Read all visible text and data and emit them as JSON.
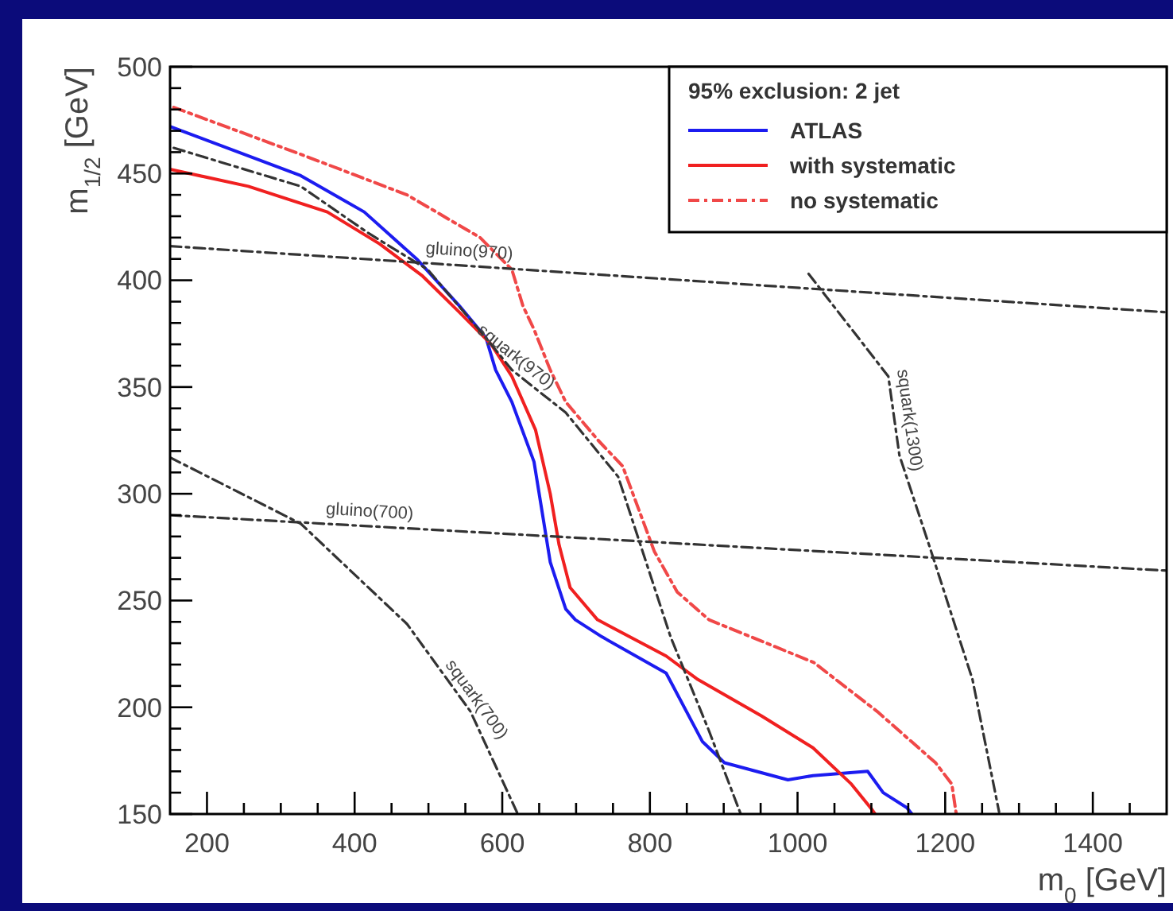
{
  "chart_data": {
    "type": "line",
    "xlabel": "m$_{0}$ [GeV]",
    "ylabel": "m$_{1/2}$ [GeV]",
    "legend_title": "95% exclusion: 2 jet",
    "legend": "top right",
    "grid": false,
    "xlim": [
      150,
      1500
    ],
    "ylim": [
      150,
      500
    ],
    "xticks": [
      200,
      {
        "value": 250,
        "label": null
      },
      {
        "value": 300,
        "label": null
      },
      {
        "value": 350,
        "label": null
      },
      400,
      {
        "value": 450,
        "label": null
      },
      {
        "value": 500,
        "label": null
      },
      {
        "value": 550,
        "label": null
      },
      600,
      {
        "value": 650,
        "label": null
      },
      {
        "value": 700,
        "label": null
      },
      {
        "value": 750,
        "label": null
      },
      800,
      {
        "value": 850,
        "label": null
      },
      {
        "value": 900,
        "label": null
      },
      {
        "value": 950,
        "label": null
      },
      1000,
      {
        "value": 1050,
        "label": null
      },
      {
        "value": 1100,
        "label": null
      },
      {
        "value": 1150,
        "label": null
      },
      1200,
      {
        "value": 1250,
        "label": null
      },
      {
        "value": 1300,
        "label": null
      },
      {
        "value": 1350,
        "label": null
      },
      1400,
      {
        "value": 1450,
        "label": null
      }
    ],
    "yticks": [
      150,
      {
        "value": 160,
        "label": null
      },
      {
        "value": 170,
        "label": null
      },
      {
        "value": 180,
        "label": null
      },
      {
        "value": 190,
        "label": null
      },
      200,
      {
        "value": 210,
        "label": null
      },
      {
        "value": 220,
        "label": null
      },
      {
        "value": 230,
        "label": null
      },
      {
        "value": 240,
        "label": null
      },
      250,
      {
        "value": 260,
        "label": null
      },
      {
        "value": 270,
        "label": null
      },
      {
        "value": 280,
        "label": null
      },
      {
        "value": 290,
        "label": null
      },
      300,
      {
        "value": 310,
        "label": null
      },
      {
        "value": 320,
        "label": null
      },
      {
        "value": 330,
        "label": null
      },
      {
        "value": 340,
        "label": null
      },
      350,
      {
        "value": 360,
        "label": null
      },
      {
        "value": 370,
        "label": null
      },
      {
        "value": 380,
        "label": null
      },
      {
        "value": 390,
        "label": null
      },
      400,
      {
        "value": 410,
        "label": null
      },
      {
        "value": 420,
        "label": null
      },
      {
        "value": 430,
        "label": null
      },
      {
        "value": 440,
        "label": null
      },
      450,
      {
        "value": 460,
        "label": null
      },
      {
        "value": 470,
        "label": null
      },
      {
        "value": 480,
        "label": null
      },
      {
        "value": 490,
        "label": null
      },
      500
    ],
    "series": [
      {
        "name": "ATLAS",
        "color": "#1c1cf0",
        "line_style": "solid",
        "x": [
          150,
          327,
          413,
          484,
          542,
          578,
          591,
          613,
          643,
          665,
          686,
          699,
          735,
          822,
          871,
          901,
          987,
          1021,
          1095,
          1116,
          1148,
          1155
        ],
        "values": [
          472,
          449,
          432,
          410,
          388,
          373,
          358,
          343,
          315,
          268,
          246,
          241,
          233,
          216,
          184,
          174,
          166,
          168,
          170,
          160,
          153,
          150
        ]
      },
      {
        "name": "with systematic",
        "color": "#f02020",
        "line_style": "solid",
        "x": [
          150,
          256,
          363,
          434,
          492,
          542,
          585,
          613,
          645,
          665,
          677,
          692,
          729,
          822,
          865,
          951,
          1021,
          1073,
          1101,
          1105
        ],
        "values": [
          452,
          444,
          432,
          417,
          402,
          385,
          370,
          355,
          330,
          300,
          276,
          256,
          241,
          224,
          213,
          196,
          181,
          164,
          152,
          150
        ]
      },
      {
        "name": "no systematic",
        "color": "#f04848",
        "line_style": "dashed",
        "x": [
          155,
          327,
          471,
          570,
          613,
          628,
          643,
          665,
          686,
          730,
          763,
          806,
          837,
          880,
          1022,
          1108,
          1187,
          1209,
          1215
        ],
        "values": [
          481,
          459,
          440,
          420,
          405,
          388,
          377,
          358,
          343,
          325,
          313,
          273,
          254,
          241,
          221,
          198,
          174,
          164,
          150
        ]
      },
      {
        "name": "gluino(970)",
        "type": "line",
        "color": "#333333",
        "line_style": "dashed",
        "x": [
          150,
          1500
        ],
        "values": [
          416,
          385
        ]
      },
      {
        "name": "gluino(700)",
        "type": "line",
        "color": "#333333",
        "line_style": "dashed",
        "x": [
          150,
          1500
        ],
        "values": [
          290,
          264
        ]
      },
      {
        "name": "squark(700)",
        "type": "line",
        "color": "#333333",
        "line_style": "dashed",
        "x": [
          150,
          327,
          471,
          557,
          621
        ],
        "values": [
          317,
          286,
          239,
          198,
          150
        ]
      },
      {
        "name": "squark(970)",
        "type": "line",
        "color": "#333333",
        "line_style": "dashed",
        "x": [
          155,
          327,
          419,
          499,
          578,
          613,
          686,
          757,
          828,
          880,
          923
        ],
        "values": [
          462,
          444,
          422,
          405,
          373,
          358,
          338,
          308,
          233,
          189,
          150
        ]
      },
      {
        "name": "squark(1300)",
        "type": "line",
        "color": "#333333",
        "line_style": "dashed",
        "x": [
          1015,
          1123,
          1138,
          1181,
          1237,
          1273
        ],
        "values": [
          403,
          355,
          318,
          273,
          213,
          151
        ]
      }
    ]
  }
}
